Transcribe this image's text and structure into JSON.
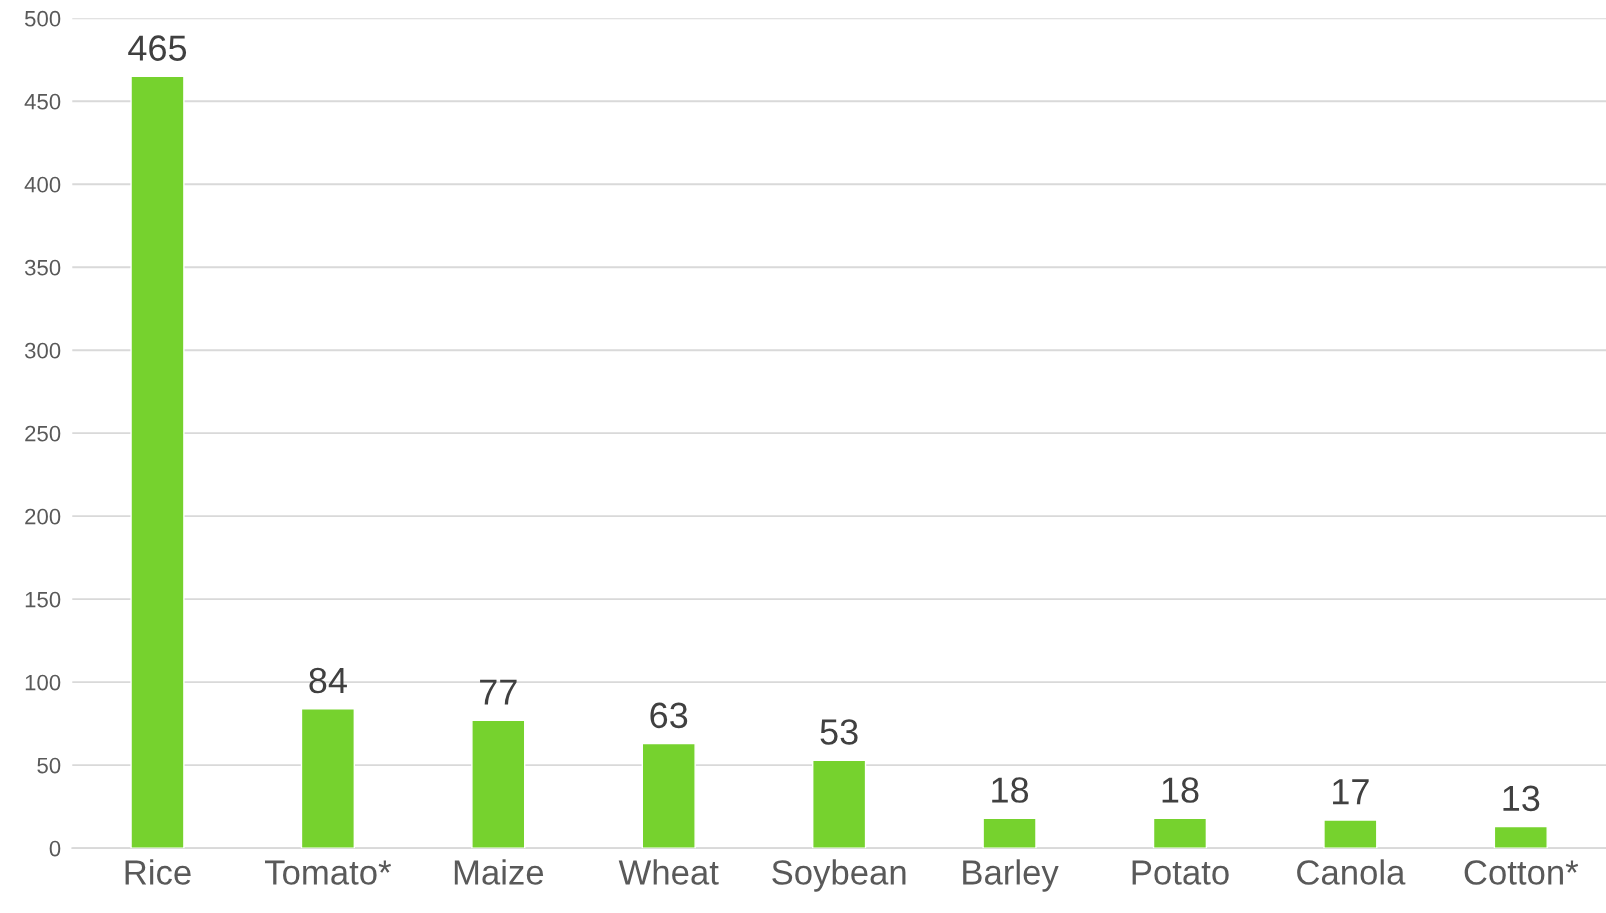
{
  "chart_data": {
    "type": "bar",
    "categories": [
      "Rice",
      "Tomato*",
      "Maize",
      "Wheat",
      "Soybean",
      "Barley",
      "Potato",
      "Canola",
      "Cotton*"
    ],
    "values": [
      465,
      84,
      77,
      63,
      53,
      18,
      18,
      17,
      13
    ],
    "color": "#76d22e",
    "ylim": [
      0,
      500
    ],
    "yticks": [
      0,
      50,
      100,
      150,
      200,
      250,
      300,
      350,
      400,
      450,
      500
    ],
    "grid": "y",
    "data_labels": true
  }
}
